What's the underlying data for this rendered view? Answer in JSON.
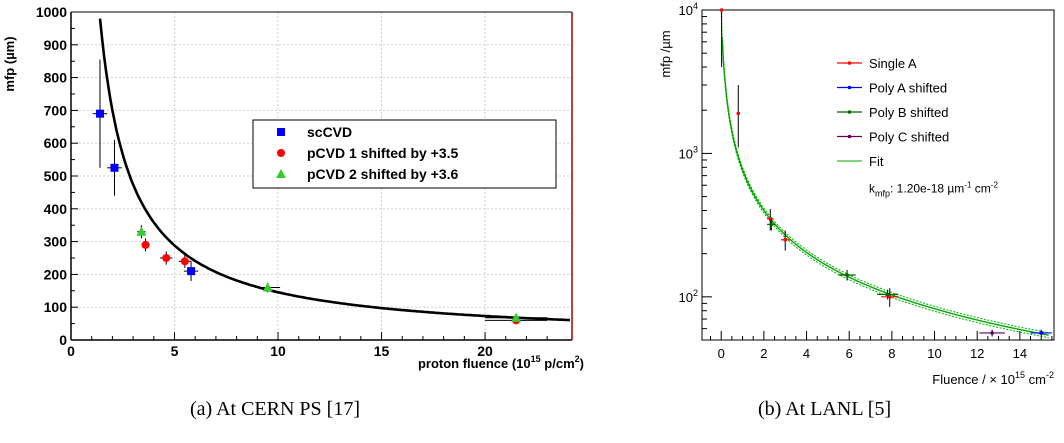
{
  "figure": {
    "caption_a": "(a) At CERN PS [17]",
    "caption_b": "(b) At LANL [5]"
  },
  "chart_data": [
    {
      "type": "scatter",
      "ylabel": "mfp (µm)",
      "xlabel_main": "proton fluence (10",
      "xlabel_sup": "15",
      "xlabel_tail": " p/cm",
      "xlabel_sup2": "2",
      "xlabel_end": ")",
      "xlim": [
        0,
        24.2
      ],
      "ylim": [
        0,
        1000
      ],
      "xticks": [
        0,
        5,
        10,
        15,
        20
      ],
      "yticks": [
        0,
        100,
        200,
        300,
        400,
        500,
        600,
        700,
        800,
        900,
        1000
      ],
      "grid": true,
      "legend_position": "center-right",
      "colors": {
        "scCVD": "#0000ff",
        "pCVD1": "#ff0000",
        "pCVD2": "#33cc33",
        "fit": "#000000",
        "frame_right": "#aa0000"
      },
      "series": [
        {
          "name": "scCVD",
          "marker": "square",
          "color": "#0000ff",
          "points": [
            {
              "x": 1.4,
              "y": 690,
              "xerr": 0.35,
              "yerr": 165
            },
            {
              "x": 2.1,
              "y": 525,
              "xerr": 0.35,
              "yerr": 85
            },
            {
              "x": 5.8,
              "y": 210,
              "xerr": 0.35,
              "yerr": 30
            }
          ]
        },
        {
          "name": "pCVD 1 shifted by +3.5",
          "marker": "circle",
          "color": "#ff0000",
          "points": [
            {
              "x": 3.6,
              "y": 290,
              "xerr": 0.2,
              "yerr": 20
            },
            {
              "x": 4.6,
              "y": 250,
              "xerr": 0.3,
              "yerr": 20
            },
            {
              "x": 5.5,
              "y": 240,
              "xerr": 0.3,
              "yerr": 20
            },
            {
              "x": 21.5,
              "y": 60,
              "xerr": 1.5,
              "yerr": 8
            }
          ]
        },
        {
          "name": "pCVD 2 shifted by +3.6",
          "marker": "triangle",
          "color": "#33cc33",
          "points": [
            {
              "x": 3.4,
              "y": 330,
              "xerr": 0.2,
              "yerr": 20
            },
            {
              "x": 9.5,
              "y": 160,
              "xerr": 0.6,
              "yerr": 15
            },
            {
              "x": 21.5,
              "y": 68,
              "xerr": 1.5,
              "yerr": 8
            }
          ]
        }
      ],
      "fit": {
        "k_um_per_1e15": 1470,
        "x_offset": 0.1
      }
    },
    {
      "type": "scatter",
      "ylabel": "mfp /µm",
      "xlabel_main": "Fluence / × 10",
      "xlabel_sup": "15",
      "xlabel_tail": " cm",
      "xlabel_sup2": "-2",
      "xlim": [
        -0.9,
        15.6
      ],
      "ylim": [
        50,
        10000
      ],
      "yscale": "log",
      "xticks": [
        0,
        2,
        4,
        6,
        8,
        10,
        12,
        14
      ],
      "yticks": [
        {
          "value": 100,
          "base": "10",
          "exp": "2"
        },
        {
          "value": 1000,
          "base": "10",
          "exp": "3"
        },
        {
          "value": 10000,
          "base": "10",
          "exp": "4"
        }
      ],
      "grid": false,
      "legend_position": "top-right",
      "annotation": {
        "k_label": "k",
        "k_sub": "mfp",
        "k_value": ": 1.20e-18 µm",
        "k_sup1": "-1",
        "k_unit": " cm",
        "k_sup2": "-2"
      },
      "series": [
        {
          "name": "Single A",
          "color": "#ff0000",
          "points": [
            {
              "x": 0.02,
              "y": 10000,
              "xerr": 0.02,
              "yerr_lo": 6000,
              "yerr_hi": 0
            },
            {
              "x": 0.8,
              "y": 1900,
              "xerr": 0.05,
              "yerr_lo": 800,
              "yerr_hi": 1100
            },
            {
              "x": 2.3,
              "y": 350,
              "xerr": 0.15,
              "yerr_lo": 60,
              "yerr_hi": 60
            },
            {
              "x": 3.0,
              "y": 250,
              "xerr": 0.2,
              "yerr_lo": 40,
              "yerr_hi": 40
            },
            {
              "x": 7.9,
              "y": 100,
              "xerr": 0.4,
              "yerr_lo": 15,
              "yerr_hi": 15
            }
          ]
        },
        {
          "name": "Poly A shifted",
          "color": "#0000ff",
          "points": [
            {
              "x": 15.0,
              "y": 56,
              "xerr": 0.5,
              "yerr_lo": 3,
              "yerr_hi": 3
            }
          ]
        },
        {
          "name": "Poly B shifted",
          "color": "#006600",
          "points": [
            {
              "x": 2.35,
              "y": 320,
              "xerr": 0.2,
              "yerr_lo": 30,
              "yerr_hi": 30
            },
            {
              "x": 5.9,
              "y": 142,
              "xerr": 0.4,
              "yerr_lo": 12,
              "yerr_hi": 12
            },
            {
              "x": 7.8,
              "y": 104,
              "xerr": 0.5,
              "yerr_lo": 8,
              "yerr_hi": 8
            }
          ]
        },
        {
          "name": "Poly C shifted",
          "color": "#660066",
          "points": [
            {
              "x": 12.7,
              "y": 56,
              "xerr": 0.6,
              "yerr_lo": 3,
              "yerr_hi": 3
            }
          ]
        },
        {
          "name": "Fit",
          "color": "#00aa00",
          "line": true
        }
      ],
      "fit": {
        "k_um_per_1e15": 833,
        "x_offset": 0.083
      }
    }
  ]
}
